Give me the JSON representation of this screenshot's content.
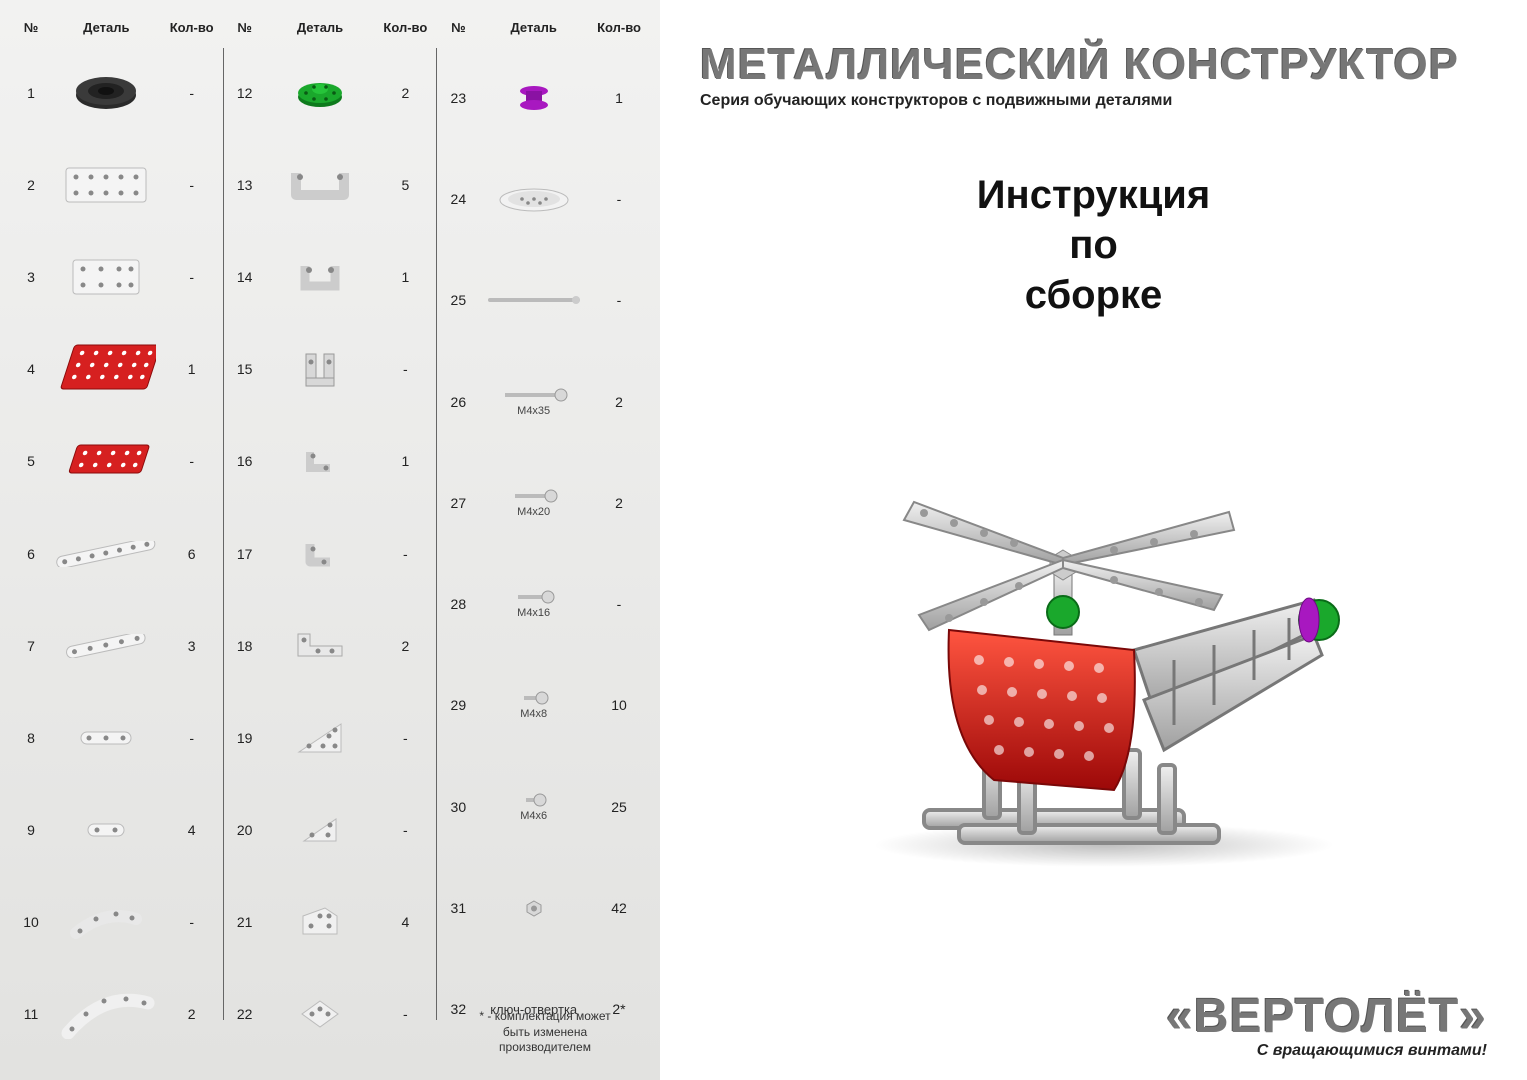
{
  "table": {
    "headers": {
      "num": "№",
      "detail": "Деталь",
      "qty": "Кол-во"
    },
    "columns": [
      [
        {
          "n": "1",
          "icon": "wheel-black",
          "qty": "-"
        },
        {
          "n": "2",
          "icon": "plate-2x5",
          "qty": "-"
        },
        {
          "n": "3",
          "icon": "plate-2x4",
          "qty": "-"
        },
        {
          "n": "4",
          "icon": "plate-red-large",
          "qty": "1"
        },
        {
          "n": "5",
          "icon": "plate-red-small",
          "qty": "-"
        },
        {
          "n": "6",
          "icon": "strip-long",
          "qty": "6"
        },
        {
          "n": "7",
          "icon": "strip-med",
          "qty": "3"
        },
        {
          "n": "8",
          "icon": "strip-3",
          "qty": "-"
        },
        {
          "n": "9",
          "icon": "strip-2",
          "qty": "4"
        },
        {
          "n": "10",
          "icon": "arc-small",
          "qty": "-"
        },
        {
          "n": "11",
          "icon": "arc-large",
          "qty": "2"
        }
      ],
      [
        {
          "n": "12",
          "icon": "hub-green",
          "qty": "2"
        },
        {
          "n": "13",
          "icon": "bracket-u-wide",
          "qty": "5"
        },
        {
          "n": "14",
          "icon": "bracket-u-narrow",
          "qty": "1"
        },
        {
          "n": "15",
          "icon": "bracket-double",
          "qty": "-"
        },
        {
          "n": "16",
          "icon": "bracket-small",
          "qty": "1"
        },
        {
          "n": "17",
          "icon": "angle-small",
          "qty": "-"
        },
        {
          "n": "18",
          "icon": "angle-wide",
          "qty": "2"
        },
        {
          "n": "19",
          "icon": "tri-plate-5",
          "qty": "-"
        },
        {
          "n": "20",
          "icon": "tri-plate-3",
          "qty": "-"
        },
        {
          "n": "21",
          "icon": "penta-plate",
          "qty": "4"
        },
        {
          "n": "22",
          "icon": "diamond-plate",
          "qty": "-"
        }
      ],
      [
        {
          "n": "23",
          "icon": "spool-purple",
          "qty": "1"
        },
        {
          "n": "24",
          "icon": "dish",
          "qty": "-"
        },
        {
          "n": "25",
          "icon": "axle",
          "qty": "-"
        },
        {
          "n": "26",
          "icon": "screw-35",
          "sub": "М4х35",
          "qty": "2"
        },
        {
          "n": "27",
          "icon": "screw-20",
          "sub": "М4х20",
          "qty": "2"
        },
        {
          "n": "28",
          "icon": "screw-16",
          "sub": "М4х16",
          "qty": "-"
        },
        {
          "n": "29",
          "icon": "screw-8",
          "sub": "М4х8",
          "qty": "10"
        },
        {
          "n": "30",
          "icon": "screw-6",
          "sub": "М4х6",
          "qty": "25"
        },
        {
          "n": "31",
          "icon": "nut",
          "qty": "42"
        },
        {
          "n": "32",
          "icon": "text",
          "text": "ключ-отвертка",
          "qty": "2*"
        }
      ]
    ],
    "footnote": "* - комплектация может быть изменена производителем"
  },
  "right": {
    "brand": "МЕТАЛЛИЧЕСКИЙ КОНСТРУКТОР",
    "brand_sub": "Серия обучающих конструкторов с подвижными деталями",
    "instr_l1": "Инструкция",
    "instr_l2": "по",
    "instr_l3": "сборке",
    "product": "«ВЕРТОЛЁТ»",
    "tagline": "С вращающимися винтами!"
  },
  "colors": {
    "metal": "#d8d8d8",
    "metal_dark": "#a8a8a8",
    "red": "#d62020",
    "green": "#1aa82c",
    "purple": "#a818c0",
    "black": "#2a2a2a"
  }
}
